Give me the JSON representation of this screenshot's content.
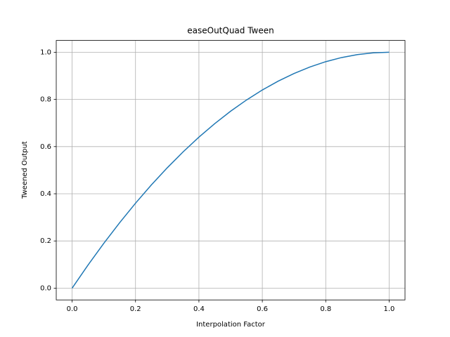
{
  "chart_data": {
    "type": "line",
    "title": "easeOutQuad Tween",
    "x_label": "Interpolation Factor",
    "y_label": "Tweened Output",
    "x": [
      0,
      0.05,
      0.1,
      0.15,
      0.2,
      0.25,
      0.3,
      0.35,
      0.4,
      0.45,
      0.5,
      0.55,
      0.6,
      0.65,
      0.7,
      0.75,
      0.8,
      0.85,
      0.9,
      0.95,
      1
    ],
    "series": [
      {
        "color": "#1f77b4",
        "values": [
          0,
          0.0975,
          0.19,
          0.2775,
          0.36,
          0.4375,
          0.51,
          0.5775,
          0.64,
          0.6975,
          0.75,
          0.7975,
          0.84,
          0.8775,
          0.91,
          0.9375,
          0.96,
          0.9775,
          0.99,
          0.9975,
          1
        ]
      }
    ],
    "xlim": [
      -0.05,
      1.05
    ],
    "ylim": [
      -0.05,
      1.05
    ],
    "xticks": [
      {
        "value": 0,
        "label": "0.0"
      },
      0.2,
      0.4,
      0.6,
      0.8,
      {
        "value": 1,
        "label": "1.0"
      }
    ],
    "yticks": [
      {
        "value": 0,
        "label": "0.0"
      },
      0.2,
      0.4,
      0.6,
      0.8,
      {
        "value": 1,
        "label": "1.0"
      }
    ],
    "grid": true
  }
}
